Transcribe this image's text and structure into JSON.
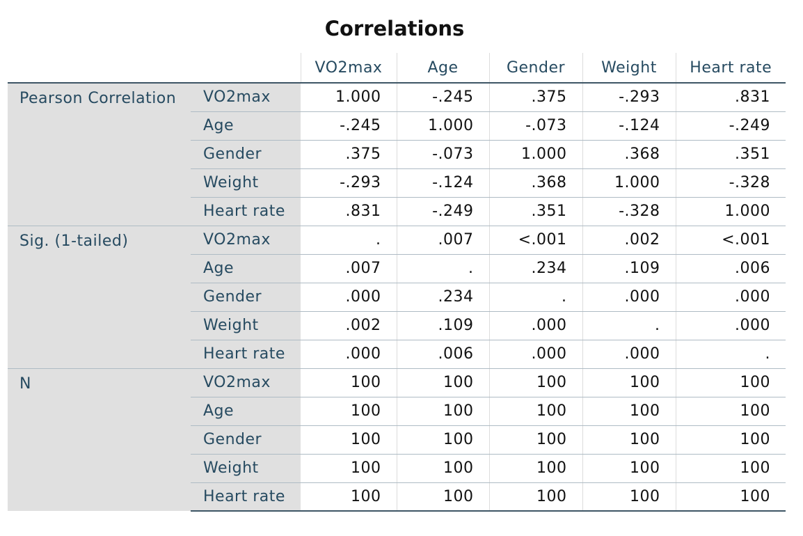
{
  "title": "Correlations",
  "columns": [
    "VO2max",
    "Age",
    "Gender",
    "Weight",
    "Heart rate"
  ],
  "groups": [
    {
      "label": "Pearson Correlation",
      "rows": [
        {
          "label": "VO2max",
          "values": [
            "1.000",
            "-.245",
            ".375",
            "-.293",
            ".831"
          ]
        },
        {
          "label": "Age",
          "values": [
            "-.245",
            "1.000",
            "-.073",
            "-.124",
            "-.249"
          ]
        },
        {
          "label": "Gender",
          "values": [
            ".375",
            "-.073",
            "1.000",
            ".368",
            ".351"
          ]
        },
        {
          "label": "Weight",
          "values": [
            "-.293",
            "-.124",
            ".368",
            "1.000",
            "-.328"
          ]
        },
        {
          "label": "Heart rate",
          "values": [
            ".831",
            "-.249",
            ".351",
            "-.328",
            "1.000"
          ]
        }
      ]
    },
    {
      "label": "Sig. (1-tailed)",
      "rows": [
        {
          "label": "VO2max",
          "values": [
            ".",
            ".007",
            "<.001",
            ".002",
            "<.001"
          ]
        },
        {
          "label": "Age",
          "values": [
            ".007",
            ".",
            ".234",
            ".109",
            ".006"
          ]
        },
        {
          "label": "Gender",
          "values": [
            ".000",
            ".234",
            ".",
            ".000",
            ".000"
          ]
        },
        {
          "label": "Weight",
          "values": [
            ".002",
            ".109",
            ".000",
            ".",
            ".000"
          ]
        },
        {
          "label": "Heart rate",
          "values": [
            ".000",
            ".006",
            ".000",
            ".000",
            "."
          ]
        }
      ]
    },
    {
      "label": "N",
      "rows": [
        {
          "label": "VO2max",
          "values": [
            "100",
            "100",
            "100",
            "100",
            "100"
          ]
        },
        {
          "label": "Age",
          "values": [
            "100",
            "100",
            "100",
            "100",
            "100"
          ]
        },
        {
          "label": "Gender",
          "values": [
            "100",
            "100",
            "100",
            "100",
            "100"
          ]
        },
        {
          "label": "Weight",
          "values": [
            "100",
            "100",
            "100",
            "100",
            "100"
          ]
        },
        {
          "label": "Heart rate",
          "values": [
            "100",
            "100",
            "100",
            "100",
            "100"
          ]
        }
      ]
    }
  ],
  "colors": {
    "label_text": "#264a60",
    "label_background": "#e0e0e0",
    "value_text": "#111111",
    "rule": "#3d5565"
  }
}
